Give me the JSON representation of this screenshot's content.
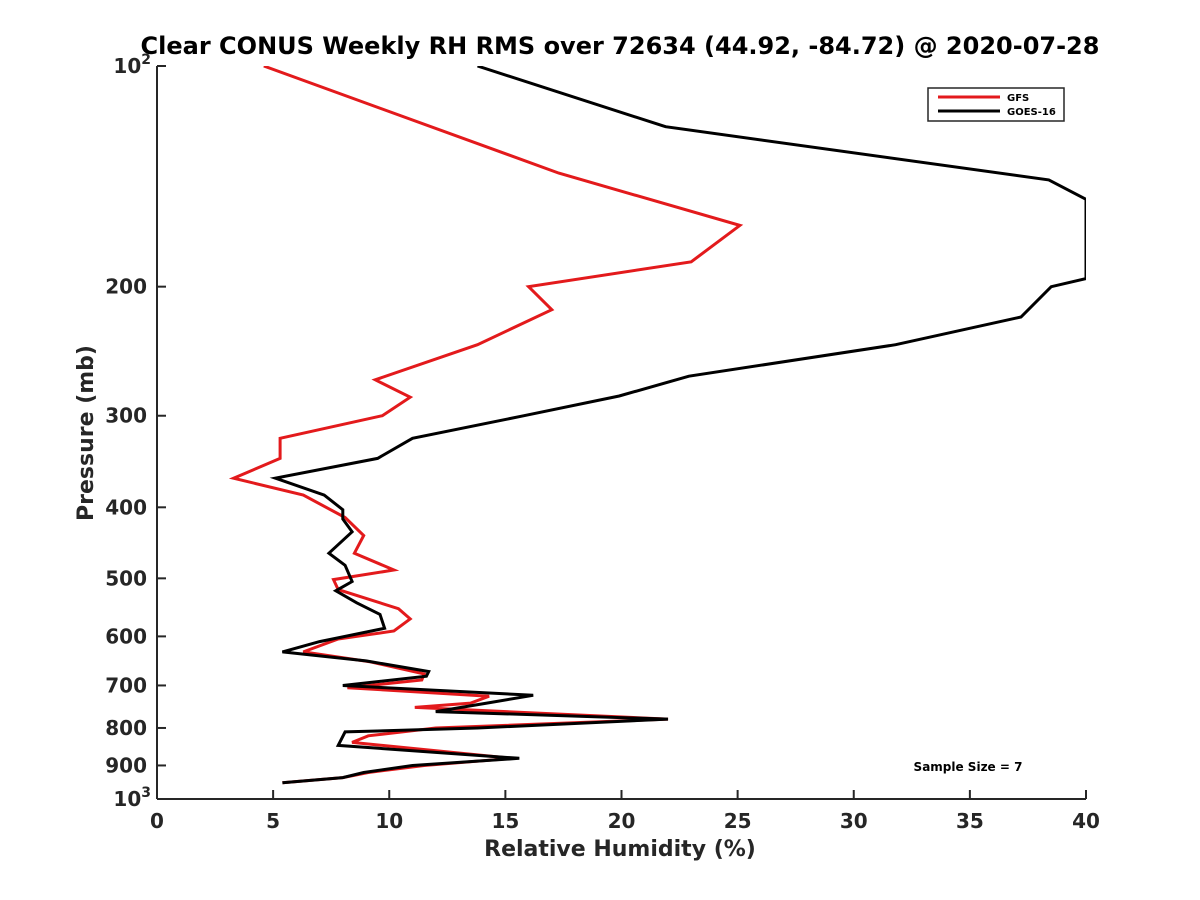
{
  "chart_data": {
    "type": "line",
    "title": "Clear CONUS Weekly RH RMS over 72634 (44.92, -84.72) @ 2020-07-28",
    "xlabel": "Relative Humidity (%)",
    "ylabel": "Pressure (mb)",
    "xlim": [
      0,
      40
    ],
    "ylim": [
      100,
      1000
    ],
    "yscale": "log",
    "yreversed": true,
    "x_ticks": [
      0,
      5,
      10,
      15,
      20,
      25,
      30,
      35,
      40
    ],
    "x_tick_labels": [
      "0",
      "5",
      "10",
      "15",
      "20",
      "25",
      "30",
      "35",
      "40"
    ],
    "y_ticks": [
      {
        "value": 100,
        "base": "10",
        "exp": "2"
      },
      {
        "value": 200,
        "label": "200"
      },
      {
        "value": 300,
        "label": "300"
      },
      {
        "value": 400,
        "label": "400"
      },
      {
        "value": 500,
        "label": "500"
      },
      {
        "value": 600,
        "label": "600"
      },
      {
        "value": 700,
        "label": "700"
      },
      {
        "value": 800,
        "label": "800"
      },
      {
        "value": 900,
        "label": "900"
      },
      {
        "value": 1000,
        "base": "10",
        "exp": "3"
      }
    ],
    "legend_position": "top-right",
    "series": [
      {
        "name": "GFS",
        "color": "#e31a1c",
        "points": [
          [
            4.6,
            100
          ],
          [
            17.3,
            140
          ],
          [
            25.1,
            165
          ],
          [
            23.0,
            185
          ],
          [
            16.0,
            200
          ],
          [
            17.0,
            215
          ],
          [
            13.8,
            240
          ],
          [
            9.4,
            268
          ],
          [
            10.9,
            283
          ],
          [
            9.7,
            300
          ],
          [
            5.3,
            322
          ],
          [
            5.3,
            343
          ],
          [
            3.3,
            365
          ],
          [
            6.3,
            385
          ],
          [
            8.1,
            413
          ],
          [
            8.9,
            437
          ],
          [
            8.5,
            462
          ],
          [
            10.2,
            487
          ],
          [
            7.6,
            502
          ],
          [
            7.8,
            518
          ],
          [
            10.4,
            550
          ],
          [
            10.9,
            568
          ],
          [
            10.2,
            590
          ],
          [
            7.8,
            605
          ],
          [
            6.3,
            630
          ],
          [
            9.2,
            650
          ],
          [
            11.5,
            675
          ],
          [
            11.4,
            688
          ],
          [
            8.2,
            705
          ],
          [
            14.3,
            724
          ],
          [
            13.5,
            740
          ],
          [
            11.1,
            750
          ],
          [
            22.0,
            778
          ],
          [
            12.0,
            800
          ],
          [
            9.1,
            820
          ],
          [
            8.4,
            837
          ],
          [
            15.3,
            880
          ],
          [
            11.5,
            900
          ],
          [
            9.1,
            920
          ],
          [
            8.0,
            935
          ],
          [
            5.4,
            950
          ]
        ]
      },
      {
        "name": "GOES-16",
        "color": "#000000",
        "points": [
          [
            13.8,
            100
          ],
          [
            21.9,
            121
          ],
          [
            38.4,
            143
          ],
          [
            40.0,
            152
          ],
          [
            40.0,
            195
          ],
          [
            38.5,
            200
          ],
          [
            37.2,
            220
          ],
          [
            31.8,
            240
          ],
          [
            22.9,
            265
          ],
          [
            19.9,
            282
          ],
          [
            15.8,
            300
          ],
          [
            11.0,
            322
          ],
          [
            9.5,
            343
          ],
          [
            5.1,
            365
          ],
          [
            7.2,
            385
          ],
          [
            8.0,
            403
          ],
          [
            8.0,
            415
          ],
          [
            8.4,
            432
          ],
          [
            7.4,
            462
          ],
          [
            8.1,
            480
          ],
          [
            8.4,
            505
          ],
          [
            7.7,
            520
          ],
          [
            8.6,
            540
          ],
          [
            9.6,
            560
          ],
          [
            9.8,
            585
          ],
          [
            7.0,
            610
          ],
          [
            5.4,
            630
          ],
          [
            9.0,
            648
          ],
          [
            11.7,
            670
          ],
          [
            11.6,
            680
          ],
          [
            8.0,
            700
          ],
          [
            16.2,
            722
          ],
          [
            14.2,
            740
          ],
          [
            12.0,
            760
          ],
          [
            22.0,
            778
          ],
          [
            13.8,
            800
          ],
          [
            8.1,
            810
          ],
          [
            7.8,
            845
          ],
          [
            15.6,
            880
          ],
          [
            11.0,
            900
          ],
          [
            8.9,
            920
          ],
          [
            8.0,
            935
          ],
          [
            5.4,
            950
          ]
        ]
      }
    ],
    "annotations": [
      "Sample Size = 7"
    ]
  }
}
